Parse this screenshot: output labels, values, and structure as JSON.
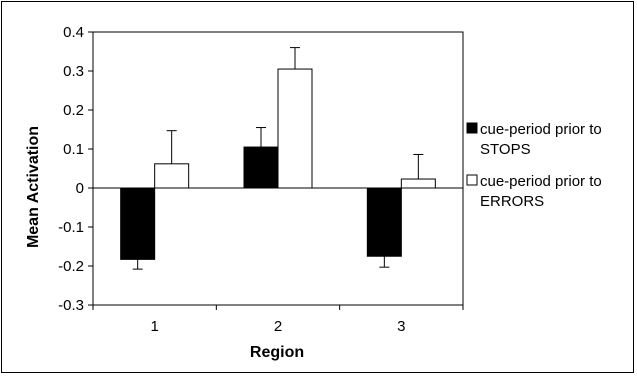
{
  "chart_data": {
    "type": "bar",
    "xlabel": "Region",
    "ylabel": "Mean Activation",
    "categories": [
      "1",
      "2",
      "3"
    ],
    "ylim": [
      -0.3,
      0.4
    ],
    "yticks": [
      "0.4",
      "0.3",
      "0.2",
      "0.1",
      "0",
      "-0.1",
      "-0.2",
      "-0.3"
    ],
    "ytick_values": [
      0.4,
      0.3,
      0.2,
      0.1,
      0,
      -0.1,
      -0.2,
      -0.3
    ],
    "series": [
      {
        "name_lines": [
          "cue-period prior to",
          "STOPS"
        ],
        "color": "#000000",
        "values": [
          -0.183,
          0.105,
          -0.175
        ],
        "errors": [
          0.025,
          0.05,
          0.028
        ]
      },
      {
        "name_lines": [
          "cue-period prior to",
          "ERRORS"
        ],
        "color": "#ffffff",
        "values": [
          0.062,
          0.305,
          0.023
        ],
        "errors": [
          0.085,
          0.055,
          0.063
        ]
      }
    ],
    "grid": false,
    "legend_position": "right"
  }
}
